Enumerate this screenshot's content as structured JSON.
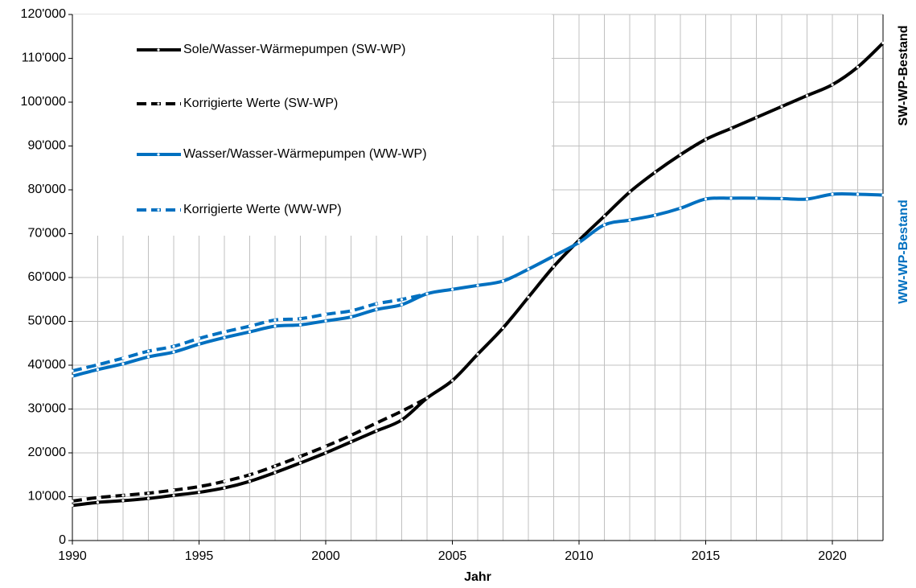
{
  "chart_data": {
    "type": "line",
    "x_label": "Jahr",
    "y_label": "SW-WP-Bestand",
    "y_label_2": "WW-WP-Bestand",
    "x": [
      1990,
      1991,
      1992,
      1993,
      1994,
      1995,
      1996,
      1997,
      1998,
      1999,
      2000,
      2001,
      2002,
      2003,
      2004,
      2005,
      2006,
      2007,
      2008,
      2009,
      2010,
      2011,
      2012,
      2013,
      2014,
      2015,
      2016,
      2017,
      2018,
      2019,
      2020,
      2021,
      2022
    ],
    "xlim": [
      1990,
      2022
    ],
    "xticks": [
      1990,
      1995,
      2000,
      2005,
      2010,
      2015,
      2020
    ],
    "ylim": [
      0,
      120000
    ],
    "yticks": [
      0,
      {
        "value": 10000,
        "label": "10'000"
      },
      {
        "value": 20000,
        "label": "20'000"
      },
      {
        "value": 30000,
        "label": "30'000"
      },
      {
        "value": 40000,
        "label": "40'000"
      },
      {
        "value": 50000,
        "label": "50'000"
      },
      {
        "value": 60000,
        "label": "60'000"
      },
      {
        "value": 70000,
        "label": "70'000"
      },
      {
        "value": 80000,
        "label": "80'000"
      },
      {
        "value": 90000,
        "label": "90'000"
      },
      {
        "value": 100000,
        "label": "100'000"
      },
      {
        "value": 110000,
        "label": "110'000"
      },
      {
        "value": 120000,
        "label": "120'000"
      }
    ],
    "grid": true,
    "legend": "upper left",
    "series": [
      {
        "name": "Sole/Wasser-Wärmepumpen (SW-WP)",
        "color": "#000000",
        "dashed": false,
        "values": [
          8000,
          8700,
          9100,
          9600,
          10300,
          11000,
          12000,
          13500,
          15500,
          17700,
          20000,
          22500,
          25000,
          27500,
          32500,
          36500,
          42500,
          48500,
          55500,
          62500,
          68500,
          74000,
          79500,
          84000,
          88000,
          91500,
          94000,
          96500,
          99000,
          101500,
          104000,
          108000,
          113500
        ]
      },
      {
        "name": "Korrigierte Werte (SW-WP)",
        "color": "#000000",
        "dashed": true,
        "values": [
          9000,
          9800,
          10300,
          10800,
          11500,
          12300,
          13500,
          15000,
          17000,
          19200,
          21500,
          24000,
          26800,
          29500,
          32500,
          null,
          null,
          null,
          null,
          null,
          null,
          null,
          null,
          null,
          null,
          null,
          null,
          null,
          null,
          null,
          null,
          null,
          null
        ]
      },
      {
        "name": "Wasser/Wasser-Wärmepumpen (WW-WP)",
        "color": "#0070c0",
        "dashed": false,
        "values": [
          37500,
          39000,
          40300,
          41900,
          43000,
          44800,
          46300,
          47600,
          48900,
          49200,
          50100,
          51000,
          52700,
          53800,
          56300,
          57300,
          58200,
          59200,
          61900,
          64900,
          68000,
          72000,
          73100,
          74200,
          75800,
          77900,
          78100,
          78100,
          78000,
          77900,
          79000,
          79000,
          78800
        ]
      },
      {
        "name": "Korrigierte Werte (WW-WP)",
        "color": "#0070c0",
        "dashed": true,
        "values": [
          38700,
          40100,
          41600,
          43200,
          44300,
          46100,
          47600,
          48900,
          50300,
          50600,
          51600,
          52400,
          54000,
          55000,
          56300,
          null,
          null,
          null,
          null,
          null,
          null,
          null,
          null,
          null,
          null,
          null,
          null,
          null,
          null,
          null,
          null,
          null,
          null
        ]
      }
    ]
  }
}
